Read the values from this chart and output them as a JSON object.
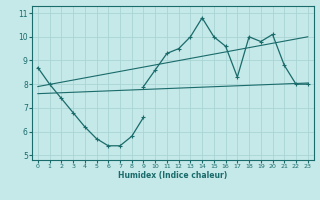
{
  "title": "",
  "xlabel": "Humidex (Indice chaleur)",
  "ylabel": "",
  "bg_color": "#c5e8e8",
  "grid_color": "#aad4d4",
  "line_color": "#1a6b6b",
  "xlim": [
    -0.5,
    23.5
  ],
  "ylim": [
    4.8,
    11.3
  ],
  "yticks": [
    5,
    6,
    7,
    8,
    9,
    10,
    11
  ],
  "xticks": [
    0,
    1,
    2,
    3,
    4,
    5,
    6,
    7,
    8,
    9,
    10,
    11,
    12,
    13,
    14,
    15,
    16,
    17,
    18,
    19,
    20,
    21,
    22,
    23
  ],
  "series1_x": [
    0,
    1,
    2,
    3,
    4,
    5,
    6,
    7,
    8,
    9
  ],
  "series1_y": [
    8.7,
    8.0,
    7.4,
    6.8,
    6.2,
    5.7,
    5.4,
    5.4,
    5.8,
    6.6
  ],
  "series3_x": [
    9,
    10,
    11,
    12,
    13,
    14,
    15,
    16,
    17,
    18,
    19,
    20,
    21,
    22,
    23
  ],
  "series3_y": [
    7.9,
    8.6,
    9.3,
    9.5,
    10.0,
    10.8,
    10.0,
    9.6,
    8.3,
    10.0,
    9.8,
    10.1,
    8.8,
    8.0,
    8.0
  ],
  "trend1_x": [
    0,
    23
  ],
  "trend1_y": [
    7.6,
    8.05
  ],
  "trend2_x": [
    0,
    23
  ],
  "trend2_y": [
    7.9,
    10.0
  ]
}
